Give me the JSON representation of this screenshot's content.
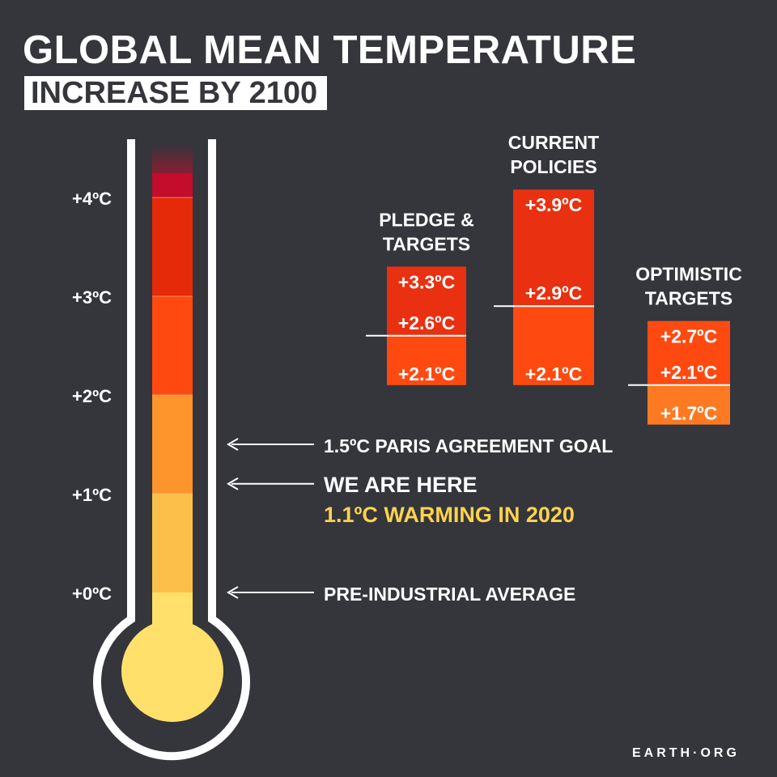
{
  "title": "GLOBAL MEAN TEMPERATURE",
  "subtitle": "INCREASE BY 2100",
  "logo": "EARTH·ORG",
  "colors": {
    "background": "#35353c",
    "text": "#ffffff",
    "highlight": "#fdd34e",
    "band_0_1": "#fcc04a",
    "band_1_2": "#fd942c",
    "band_2_3": "#fe4a11",
    "band_3_4": "#e52a0a",
    "band_top": "#c40c2c",
    "bulb": "#ffe06a",
    "scenario_red": "#e93010",
    "scenario_orange": "#fe4a11",
    "scenario_light": "#fd7a22"
  },
  "chart_data": [
    {
      "type": "bar",
      "name": "thermometer",
      "y_ticks": [
        {
          "value": 0,
          "label": "+0ºC"
        },
        {
          "value": 1,
          "label": "+1ºC"
        },
        {
          "value": 2,
          "label": "+2ºC"
        },
        {
          "value": 3,
          "label": "+3ºC"
        },
        {
          "value": 4,
          "label": "+4ºC"
        }
      ],
      "ylim": [
        0,
        4
      ],
      "annotations": [
        {
          "value": 1.5,
          "text": "1.5ºC PARIS AGREEMENT GOAL"
        },
        {
          "value": 1.1,
          "text": "WE ARE HERE",
          "subtext": "1.1ºC WARMING IN 2020"
        },
        {
          "value": 0,
          "text": "PRE-INDUSTRIAL AVERAGE"
        }
      ]
    },
    {
      "type": "bar",
      "name": "scenarios",
      "unit": "ºC",
      "scenarios": [
        {
          "label_lines": [
            "PLEDGE &",
            "TARGETS"
          ],
          "low": 2.1,
          "mid": 2.6,
          "high": 3.3,
          "labels": {
            "low": "+2.1ºC",
            "mid": "+2.6ºC",
            "high": "+3.3ºC"
          }
        },
        {
          "label_lines": [
            "CURRENT",
            "POLICIES"
          ],
          "low": 2.1,
          "mid": 2.9,
          "high": 3.9,
          "labels": {
            "low": "+2.1ºC",
            "mid": "+2.9ºC",
            "high": "+3.9ºC"
          }
        },
        {
          "label_lines": [
            "OPTIMISTIC",
            "TARGETS"
          ],
          "low": 1.7,
          "mid": 2.1,
          "high": 2.7,
          "labels": {
            "low": "+1.7ºC",
            "mid": "+2.1ºC",
            "high": "+2.7ºC"
          }
        }
      ]
    }
  ]
}
